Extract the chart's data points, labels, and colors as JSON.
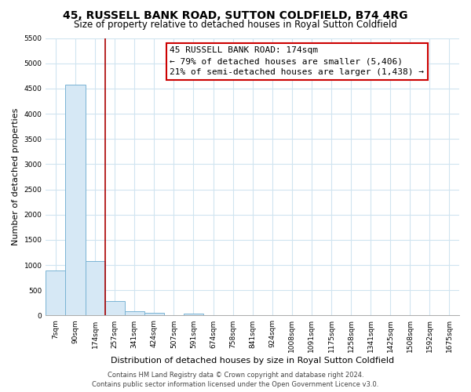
{
  "title": "45, RUSSELL BANK ROAD, SUTTON COLDFIELD, B74 4RG",
  "subtitle": "Size of property relative to detached houses in Royal Sutton Coldfield",
  "xlabel": "Distribution of detached houses by size in Royal Sutton Coldfield",
  "ylabel": "Number of detached properties",
  "bar_labels": [
    "7sqm",
    "90sqm",
    "174sqm",
    "257sqm",
    "341sqm",
    "424sqm",
    "507sqm",
    "591sqm",
    "674sqm",
    "758sqm",
    "841sqm",
    "924sqm",
    "1008sqm",
    "1091sqm",
    "1175sqm",
    "1258sqm",
    "1341sqm",
    "1425sqm",
    "1508sqm",
    "1592sqm",
    "1675sqm"
  ],
  "bar_values": [
    900,
    4580,
    1080,
    290,
    80,
    50,
    0,
    40,
    0,
    0,
    0,
    0,
    0,
    0,
    0,
    0,
    0,
    0,
    0,
    0,
    0
  ],
  "bar_color": "#d6e8f5",
  "bar_edge_color": "#7ab4d4",
  "highlight_line_color": "#aa0000",
  "highlight_bar_index": 2,
  "ylim": [
    0,
    5500
  ],
  "yticks": [
    0,
    500,
    1000,
    1500,
    2000,
    2500,
    3000,
    3500,
    4000,
    4500,
    5000,
    5500
  ],
  "annotation_title": "45 RUSSELL BANK ROAD: 174sqm",
  "annotation_line1": "← 79% of detached houses are smaller (5,406)",
  "annotation_line2": "21% of semi-detached houses are larger (1,438) →",
  "annotation_box_color": "#ffffff",
  "annotation_box_edge": "#cc0000",
  "footer_line1": "Contains HM Land Registry data © Crown copyright and database right 2024.",
  "footer_line2": "Contains public sector information licensed under the Open Government Licence v3.0.",
  "bg_color": "#ffffff",
  "grid_color": "#d0e4f0",
  "title_fontsize": 10,
  "subtitle_fontsize": 8.5,
  "axis_label_fontsize": 8,
  "tick_fontsize": 6.5,
  "annotation_fontsize": 8,
  "footer_fontsize": 6
}
